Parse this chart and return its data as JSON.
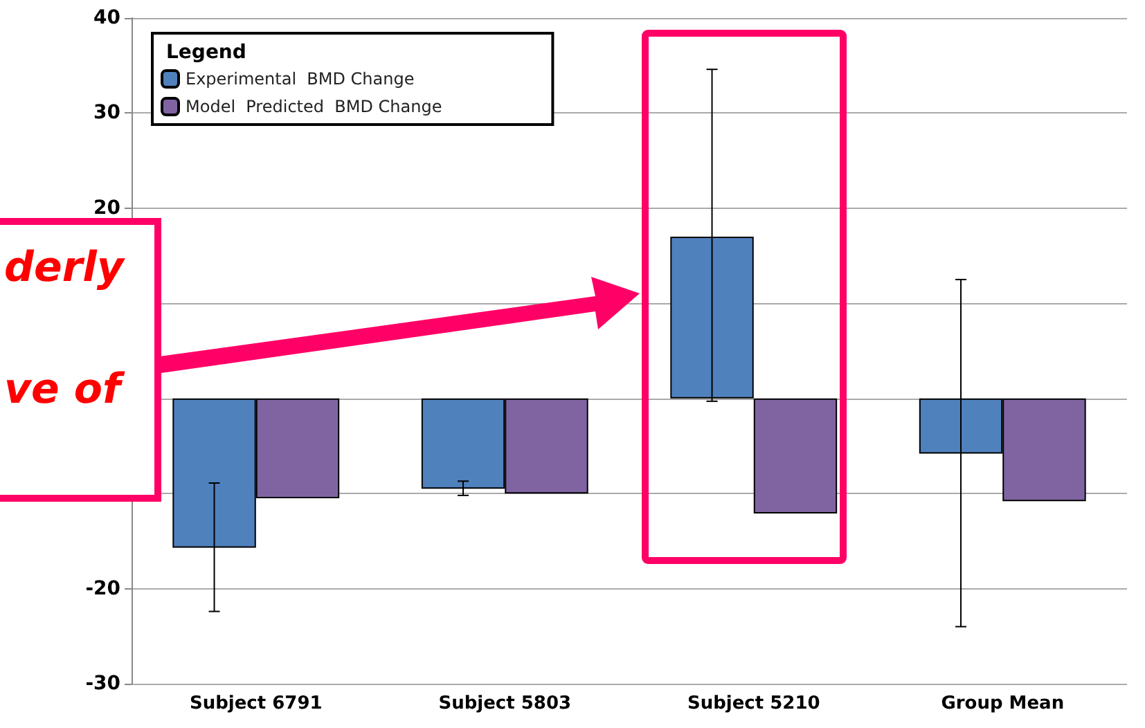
{
  "chart_data": {
    "type": "bar",
    "categories": [
      "Subject 6791",
      "Subject 5803",
      "Subject 5210",
      "Group Mean"
    ],
    "series": [
      {
        "name": "Experimental  BMD Change",
        "color": "#4f81bd",
        "values": [
          -15.7,
          -9.5,
          17.0,
          -5.8
        ],
        "errors": [
          [
            -22.4,
            -8.9
          ],
          [
            -10.2,
            -8.7
          ],
          [
            -0.3,
            34.6
          ],
          [
            -24.0,
            12.5
          ]
        ]
      },
      {
        "name": "Model  Predicted  BMD Change",
        "color": "#8064a2",
        "values": [
          -10.5,
          -10.0,
          -12.1,
          -10.8
        ]
      }
    ],
    "ylim": [
      -30,
      40
    ],
    "yticks": [
      -30,
      -20,
      {
        "value": -10,
        "label": null
      },
      {
        "value": 0,
        "label": null
      },
      {
        "value": 10,
        "label": null
      },
      20,
      30,
      40
    ],
    "grid": "y",
    "legend": "top left",
    "legend_title": "Legend",
    "annotations": [
      "derly",
      "ve of"
    ]
  }
}
